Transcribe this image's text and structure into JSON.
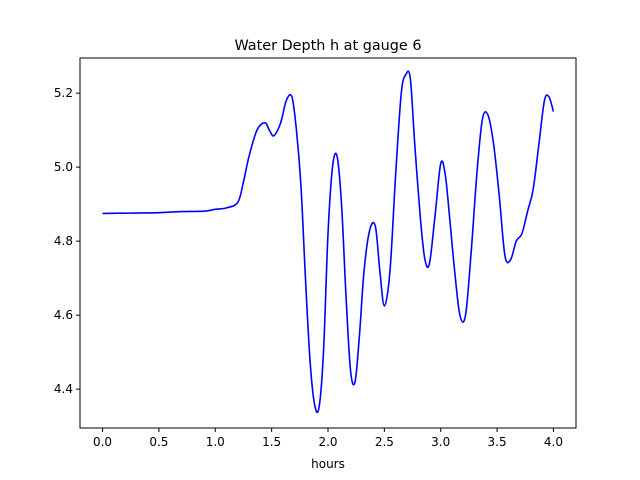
{
  "chart_data": {
    "type": "line",
    "title": "Water Depth h at gauge 6",
    "xlabel": "hours",
    "ylabel": "",
    "xlim": [
      -0.2,
      4.2
    ],
    "ylim": [
      4.295,
      5.295
    ],
    "xticks": [
      0.0,
      0.5,
      1.0,
      1.5,
      2.0,
      2.5,
      3.0,
      3.5,
      4.0
    ],
    "xtick_labels": [
      "0.0",
      "0.5",
      "1.0",
      "1.5",
      "2.0",
      "2.5",
      "3.0",
      "3.5",
      "4.0"
    ],
    "yticks": [
      4.4,
      4.6,
      4.8,
      5.0,
      5.2
    ],
    "ytick_labels": [
      "4.4",
      "4.6",
      "4.8",
      "5.0",
      "5.2"
    ],
    "grid": false,
    "series": [
      {
        "color": "#0000ff",
        "x": [
          0.0,
          0.3,
          0.5,
          0.7,
          0.9,
          1.0,
          1.1,
          1.2,
          1.25,
          1.3,
          1.37,
          1.44,
          1.48,
          1.52,
          1.58,
          1.63,
          1.68,
          1.72,
          1.76,
          1.8,
          1.84,
          1.88,
          1.92,
          1.96,
          2.0,
          2.04,
          2.08,
          2.12,
          2.16,
          2.2,
          2.24,
          2.28,
          2.32,
          2.37,
          2.42,
          2.46,
          2.5,
          2.55,
          2.6,
          2.65,
          2.69,
          2.73,
          2.77,
          2.82,
          2.86,
          2.9,
          2.95,
          3.0,
          3.04,
          3.08,
          3.12,
          3.17,
          3.22,
          3.27,
          3.32,
          3.37,
          3.42,
          3.47,
          3.52,
          3.57,
          3.62,
          3.67,
          3.72,
          3.77,
          3.82,
          3.87,
          3.92,
          3.96,
          4.0
        ],
        "y": [
          4.875,
          4.876,
          4.877,
          4.88,
          4.881,
          4.886,
          4.89,
          4.905,
          4.96,
          5.03,
          5.1,
          5.12,
          5.1,
          5.085,
          5.12,
          5.18,
          5.19,
          5.1,
          4.95,
          4.7,
          4.48,
          4.36,
          4.35,
          4.5,
          4.82,
          5.0,
          5.03,
          4.9,
          4.65,
          4.45,
          4.42,
          4.55,
          4.72,
          4.83,
          4.84,
          4.72,
          4.625,
          4.72,
          4.98,
          5.2,
          5.25,
          5.24,
          5.06,
          4.86,
          4.75,
          4.74,
          4.87,
          5.01,
          4.98,
          4.86,
          4.73,
          4.6,
          4.6,
          4.77,
          4.98,
          5.13,
          5.14,
          5.06,
          4.92,
          4.76,
          4.75,
          4.8,
          4.82,
          4.88,
          4.94,
          5.06,
          5.18,
          5.19,
          5.15
        ]
      }
    ]
  }
}
